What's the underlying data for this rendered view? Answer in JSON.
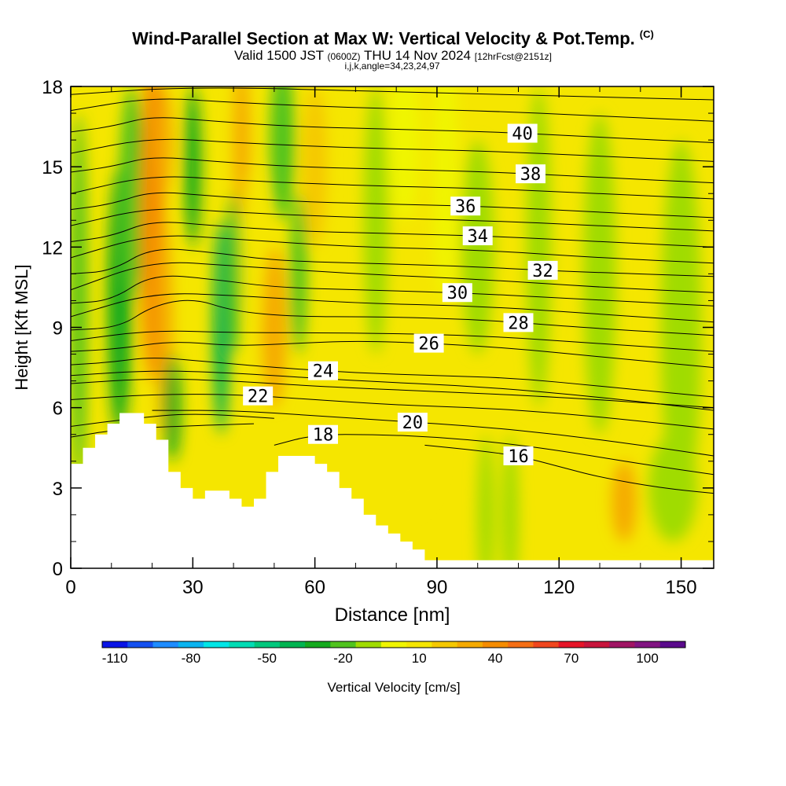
{
  "header": {
    "title": "Wind-Parallel Section at Max W: Vertical Velocity & Pot.Temp.",
    "copyright": "(C)",
    "valid_prefix": "Valid 1500 JST",
    "valid_utc": "(0600Z)",
    "valid_date": "THU 14 Nov 2024",
    "forecast": "[12hrFcst@2151z]",
    "indices": "i,j,k,angle=34,23,24,97"
  },
  "colors": {
    "terrain": "#ffffff",
    "contour": "#000000",
    "scale": [
      "#0a14e6",
      "#1450f0",
      "#1e8cff",
      "#0ab4f0",
      "#00e6e6",
      "#00dcb4",
      "#00c87d",
      "#00b450",
      "#14aa1e",
      "#50c31e",
      "#a0dc00",
      "#f0f500",
      "#f5e600",
      "#f5c800",
      "#f5aa00",
      "#f58c00",
      "#f56e14",
      "#f0461e",
      "#e61428",
      "#c8143c",
      "#a01464",
      "#821482",
      "#5a0a8c"
    ]
  },
  "chart_data": {
    "type": "heatmap",
    "xlabel": "Distance [nm]",
    "ylabel": "Height [Kft MSL]",
    "xlim": [
      0,
      158
    ],
    "ylim": [
      0,
      18
    ],
    "xticks": [
      0,
      30,
      60,
      90,
      120,
      150
    ],
    "yticks": [
      0,
      3,
      6,
      9,
      12,
      15,
      18
    ],
    "colorbar": {
      "label": "Vertical Velocity [cm/s]",
      "ticks": [
        -110,
        -80,
        -50,
        -20,
        10,
        40,
        70,
        100
      ],
      "min": -115,
      "max": 115,
      "step": 10
    },
    "terrain_profile": [
      [
        0,
        3.9
      ],
      [
        3,
        3.9
      ],
      [
        3,
        4.5
      ],
      [
        6,
        4.5
      ],
      [
        6,
        5.0
      ],
      [
        9,
        5.0
      ],
      [
        9,
        5.4
      ],
      [
        12,
        5.4
      ],
      [
        12,
        5.8
      ],
      [
        18,
        5.8
      ],
      [
        18,
        5.4
      ],
      [
        21,
        5.4
      ],
      [
        21,
        4.8
      ],
      [
        24,
        4.8
      ],
      [
        24,
        3.6
      ],
      [
        27,
        3.6
      ],
      [
        27,
        3.0
      ],
      [
        30,
        3.0
      ],
      [
        30,
        2.6
      ],
      [
        33,
        2.6
      ],
      [
        33,
        2.9
      ],
      [
        39,
        2.9
      ],
      [
        39,
        2.6
      ],
      [
        42,
        2.6
      ],
      [
        42,
        2.3
      ],
      [
        45,
        2.3
      ],
      [
        45,
        2.6
      ],
      [
        48,
        2.6
      ],
      [
        48,
        3.6
      ],
      [
        51,
        3.6
      ],
      [
        51,
        4.2
      ],
      [
        60,
        4.2
      ],
      [
        60,
        3.9
      ],
      [
        63,
        3.9
      ],
      [
        63,
        3.6
      ],
      [
        66,
        3.6
      ],
      [
        66,
        3.0
      ],
      [
        69,
        3.0
      ],
      [
        69,
        2.6
      ],
      [
        72,
        2.6
      ],
      [
        72,
        2.0
      ],
      [
        75,
        2.0
      ],
      [
        75,
        1.6
      ],
      [
        78,
        1.6
      ],
      [
        78,
        1.3
      ],
      [
        81,
        1.3
      ],
      [
        81,
        1.0
      ],
      [
        84,
        1.0
      ],
      [
        84,
        0.7
      ],
      [
        87,
        0.7
      ],
      [
        87,
        0.3
      ],
      [
        158,
        0.3
      ]
    ],
    "velocity_field": [
      {
        "x": 2,
        "y": 10,
        "rx": 2,
        "ry": 7,
        "v": -25
      },
      {
        "x": 12,
        "y": 10,
        "rx": 3,
        "ry": 5,
        "v": -35
      },
      {
        "x": 15,
        "y": 14,
        "rx": 3,
        "ry": 4,
        "v": -20
      },
      {
        "x": 20,
        "y": 13,
        "rx": 3,
        "ry": 6,
        "v": 35
      },
      {
        "x": 23,
        "y": 16,
        "rx": 2,
        "ry": 2,
        "v": 30
      },
      {
        "x": 23,
        "y": 9,
        "rx": 2,
        "ry": 4,
        "v": 25
      },
      {
        "x": 25,
        "y": 6,
        "rx": 2,
        "ry": 2,
        "v": -30
      },
      {
        "x": 30,
        "y": 15,
        "rx": 2,
        "ry": 3,
        "v": -30
      },
      {
        "x": 37,
        "y": 9,
        "rx": 2,
        "ry": 4,
        "v": -40
      },
      {
        "x": 40,
        "y": 11,
        "rx": 2,
        "ry": 3,
        "v": -20
      },
      {
        "x": 42,
        "y": 16,
        "rx": 2,
        "ry": 3,
        "v": 30
      },
      {
        "x": 45,
        "y": 12,
        "rx": 3,
        "ry": 3,
        "v": 10
      },
      {
        "x": 50,
        "y": 9,
        "rx": 3,
        "ry": 3,
        "v": 25
      },
      {
        "x": 52,
        "y": 16,
        "rx": 3,
        "ry": 3,
        "v": -25
      },
      {
        "x": 56,
        "y": 11,
        "rx": 2,
        "ry": 3,
        "v": -20
      },
      {
        "x": 60,
        "y": 15,
        "rx": 3,
        "ry": 3,
        "v": 15
      },
      {
        "x": 75,
        "y": 13,
        "rx": 3,
        "ry": 5,
        "v": -10
      },
      {
        "x": 82,
        "y": 16,
        "rx": 4,
        "ry": 3,
        "v": -5
      },
      {
        "x": 92,
        "y": 15,
        "rx": 3,
        "ry": 5,
        "v": -5
      },
      {
        "x": 100,
        "y": 12,
        "rx": 4,
        "ry": 4,
        "v": -8
      },
      {
        "x": 102,
        "y": 2,
        "rx": 2,
        "ry": 3,
        "v": -8
      },
      {
        "x": 108,
        "y": 2,
        "rx": 2,
        "ry": 3,
        "v": -8
      },
      {
        "x": 115,
        "y": 12,
        "rx": 3,
        "ry": 6,
        "v": -8
      },
      {
        "x": 130,
        "y": 11,
        "rx": 4,
        "ry": 6,
        "v": -8
      },
      {
        "x": 150,
        "y": 9,
        "rx": 5,
        "ry": 7,
        "v": -8
      },
      {
        "x": 148,
        "y": 3,
        "rx": 6,
        "ry": 2,
        "v": -6
      },
      {
        "x": 136,
        "y": 2.5,
        "rx": 3,
        "ry": 1.5,
        "v": 25
      },
      {
        "x": 80,
        "y": 4,
        "rx": 10,
        "ry": 2,
        "v": 10
      }
    ],
    "isentropes": [
      {
        "label": "16",
        "points": [
          [
            87,
            4.6
          ],
          [
            100,
            4.4
          ],
          [
            110,
            4.2
          ],
          [
            120,
            3.8
          ],
          [
            130,
            3.4
          ],
          [
            145,
            3.0
          ],
          [
            158,
            2.8
          ]
        ],
        "label_x": 110
      },
      {
        "label": "18",
        "points": [
          [
            50,
            4.6
          ],
          [
            60,
            5.0
          ],
          [
            75,
            5.0
          ],
          [
            90,
            4.9
          ],
          [
            105,
            4.7
          ],
          [
            120,
            4.4
          ],
          [
            140,
            3.9
          ],
          [
            158,
            3.5
          ]
        ],
        "label_x": 62
      },
      {
        "label": "20",
        "points": [
          [
            20,
            5.9
          ],
          [
            40,
            5.9
          ],
          [
            60,
            5.7
          ],
          [
            80,
            5.5
          ],
          [
            100,
            5.3
          ],
          [
            120,
            5.0
          ],
          [
            140,
            4.6
          ],
          [
            158,
            4.2
          ]
        ],
        "label_x": 84
      },
      {
        "label": "22",
        "points": [
          [
            0,
            6.3
          ],
          [
            20,
            6.5
          ],
          [
            40,
            6.5
          ],
          [
            60,
            6.3
          ],
          [
            80,
            6.1
          ],
          [
            100,
            6.0
          ],
          [
            120,
            5.8
          ],
          [
            140,
            5.5
          ],
          [
            158,
            5.2
          ]
        ],
        "label_x": 46
      },
      {
        "label": "24",
        "points": [
          [
            0,
            7.6
          ],
          [
            10,
            7.7
          ],
          [
            20,
            7.9
          ],
          [
            35,
            7.7
          ],
          [
            50,
            7.5
          ],
          [
            70,
            7.3
          ],
          [
            90,
            7.2
          ],
          [
            110,
            7.1
          ],
          [
            130,
            6.8
          ],
          [
            158,
            6.4
          ]
        ],
        "label_x": 62
      },
      {
        "label": "26",
        "points": [
          [
            0,
            8.1
          ],
          [
            12,
            8.2
          ],
          [
            25,
            8.5
          ],
          [
            40,
            8.3
          ],
          [
            55,
            8.4
          ],
          [
            70,
            8.5
          ],
          [
            90,
            8.4
          ],
          [
            110,
            8.2
          ],
          [
            130,
            7.9
          ],
          [
            158,
            7.5
          ]
        ],
        "label_x": 88
      },
      {
        "label": "28",
        "points": [
          [
            0,
            8.9
          ],
          [
            12,
            9.0
          ],
          [
            20,
            9.8
          ],
          [
            30,
            10.1
          ],
          [
            40,
            9.6
          ],
          [
            55,
            9.4
          ],
          [
            75,
            9.4
          ],
          [
            100,
            9.3
          ],
          [
            125,
            9.0
          ],
          [
            158,
            8.7
          ]
        ],
        "label_x": 110
      },
      {
        "label": "30",
        "points": [
          [
            0,
            9.9
          ],
          [
            10,
            10.0
          ],
          [
            20,
            11.0
          ],
          [
            35,
            10.8
          ],
          [
            50,
            10.5
          ],
          [
            70,
            10.4
          ],
          [
            95,
            10.3
          ],
          [
            120,
            10.1
          ],
          [
            158,
            9.8
          ]
        ],
        "label_x": 95
      },
      {
        "label": "32",
        "points": [
          [
            0,
            11.0
          ],
          [
            10,
            11.1
          ],
          [
            20,
            12.0
          ],
          [
            35,
            11.8
          ],
          [
            50,
            11.5
          ],
          [
            70,
            11.4
          ],
          [
            95,
            11.3
          ],
          [
            120,
            11.1
          ],
          [
            158,
            10.9
          ]
        ],
        "label_x": 116
      },
      {
        "label": "34",
        "points": [
          [
            0,
            12.2
          ],
          [
            10,
            12.4
          ],
          [
            20,
            13.0
          ],
          [
            35,
            12.8
          ],
          [
            55,
            12.6
          ],
          [
            80,
            12.5
          ],
          [
            105,
            12.4
          ],
          [
            130,
            12.2
          ],
          [
            158,
            12.0
          ]
        ],
        "label_x": 100
      },
      {
        "label": "36",
        "points": [
          [
            0,
            13.4
          ],
          [
            10,
            13.6
          ],
          [
            20,
            14.1
          ],
          [
            35,
            13.9
          ],
          [
            55,
            13.7
          ],
          [
            80,
            13.6
          ],
          [
            105,
            13.5
          ],
          [
            130,
            13.3
          ],
          [
            158,
            13.1
          ]
        ],
        "label_x": 97
      },
      {
        "label": "38",
        "points": [
          [
            0,
            14.8
          ],
          [
            10,
            15.0
          ],
          [
            20,
            15.4
          ],
          [
            35,
            15.2
          ],
          [
            55,
            15.0
          ],
          [
            80,
            14.9
          ],
          [
            105,
            14.8
          ],
          [
            130,
            14.6
          ],
          [
            158,
            14.4
          ]
        ],
        "label_x": 113
      },
      {
        "label": "40",
        "points": [
          [
            0,
            16.3
          ],
          [
            10,
            16.5
          ],
          [
            20,
            16.9
          ],
          [
            35,
            16.7
          ],
          [
            55,
            16.5
          ],
          [
            80,
            16.4
          ],
          [
            105,
            16.3
          ],
          [
            130,
            16.1
          ],
          [
            158,
            15.9
          ]
        ],
        "label_x": 111
      }
    ],
    "filler_contours": [
      [
        [
          0,
          4.9
        ],
        [
          12,
          5.2
        ],
        [
          25,
          5.3
        ],
        [
          45,
          5.4
        ]
      ],
      [
        [
          0,
          5.3
        ],
        [
          15,
          5.6
        ],
        [
          30,
          5.8
        ],
        [
          50,
          5.6
        ]
      ],
      [
        [
          0,
          6.9
        ],
        [
          20,
          7.1
        ],
        [
          40,
          7.0
        ],
        [
          60,
          6.8
        ],
        [
          90,
          6.6
        ],
        [
          120,
          6.4
        ],
        [
          158,
          6.0
        ]
      ],
      [
        [
          0,
          7.2
        ],
        [
          20,
          7.4
        ],
        [
          40,
          7.3
        ],
        [
          70,
          7.0
        ],
        [
          100,
          6.8
        ],
        [
          130,
          6.4
        ],
        [
          158,
          5.9
        ]
      ],
      [
        [
          0,
          8.5
        ],
        [
          20,
          8.9
        ],
        [
          40,
          8.8
        ],
        [
          70,
          8.8
        ],
        [
          100,
          8.7
        ],
        [
          130,
          8.4
        ],
        [
          158,
          8.1
        ]
      ],
      [
        [
          0,
          9.4
        ],
        [
          20,
          10.3
        ],
        [
          40,
          10.2
        ],
        [
          70,
          9.9
        ],
        [
          100,
          9.8
        ],
        [
          130,
          9.5
        ],
        [
          158,
          9.2
        ]
      ],
      [
        [
          0,
          10.4
        ],
        [
          20,
          11.5
        ],
        [
          40,
          11.3
        ],
        [
          70,
          11.0
        ],
        [
          100,
          10.8
        ],
        [
          130,
          10.5
        ],
        [
          158,
          10.3
        ]
      ],
      [
        [
          0,
          11.6
        ],
        [
          20,
          12.5
        ],
        [
          40,
          12.3
        ],
        [
          70,
          12.0
        ],
        [
          100,
          11.9
        ],
        [
          130,
          11.6
        ],
        [
          158,
          11.4
        ]
      ],
      [
        [
          0,
          12.8
        ],
        [
          20,
          13.5
        ],
        [
          40,
          13.3
        ],
        [
          70,
          13.1
        ],
        [
          100,
          13.0
        ],
        [
          130,
          12.8
        ],
        [
          158,
          12.6
        ]
      ],
      [
        [
          0,
          14.0
        ],
        [
          20,
          14.7
        ],
        [
          40,
          14.5
        ],
        [
          70,
          14.3
        ],
        [
          100,
          14.2
        ],
        [
          130,
          14.0
        ],
        [
          158,
          13.8
        ]
      ],
      [
        [
          0,
          15.5
        ],
        [
          20,
          16.1
        ],
        [
          40,
          15.9
        ],
        [
          70,
          15.7
        ],
        [
          100,
          15.6
        ],
        [
          130,
          15.4
        ],
        [
          158,
          15.2
        ]
      ],
      [
        [
          0,
          17.1
        ],
        [
          20,
          17.6
        ],
        [
          40,
          17.4
        ],
        [
          70,
          17.2
        ],
        [
          100,
          17.1
        ],
        [
          130,
          16.9
        ],
        [
          158,
          16.7
        ]
      ],
      [
        [
          0,
          17.7
        ],
        [
          30,
          18.0
        ],
        [
          80,
          17.8
        ],
        [
          158,
          17.5
        ]
      ]
    ]
  }
}
